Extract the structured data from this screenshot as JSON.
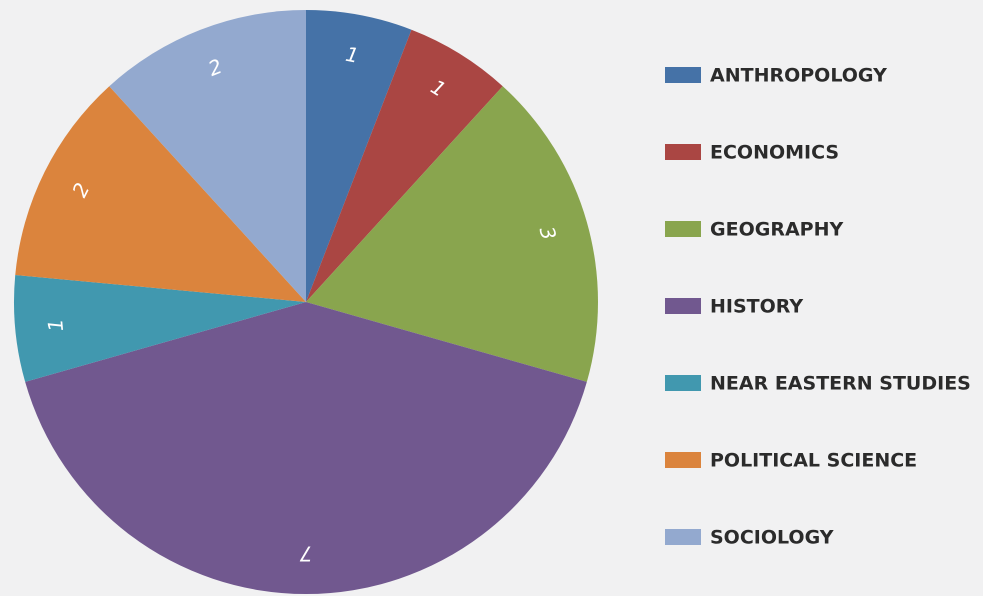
{
  "chart_data": {
    "type": "pie",
    "categories": [
      "ANTHROPOLOGY",
      "ECONOMICS",
      "GEOGRAPHY",
      "HISTORY",
      "NEAR EASTERN STUDIES",
      "POLITICAL SCIENCE",
      "SOCIOLOGY"
    ],
    "values": [
      1,
      1,
      3,
      7,
      1,
      2,
      2
    ],
    "colors": [
      "#4572a7",
      "#aa4643",
      "#89a54e",
      "#71588f",
      "#4198af",
      "#db843d",
      "#93a9cf"
    ],
    "legend": "right"
  }
}
